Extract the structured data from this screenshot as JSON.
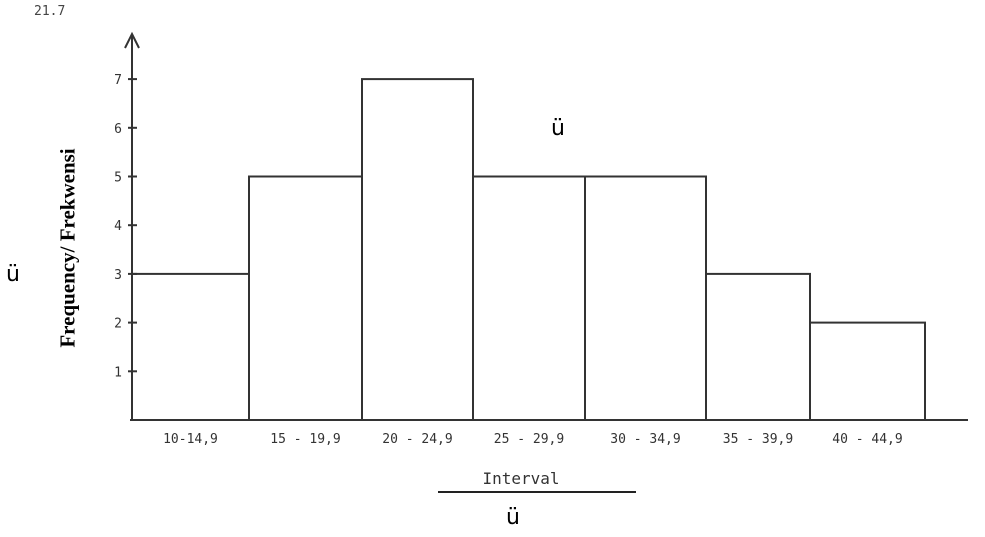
{
  "corner_note": "21.7",
  "marks": [
    "ü",
    "ü",
    "ü"
  ],
  "colors": {
    "ink": "#333333",
    "paper": "#ffffff"
  },
  "chart_data": {
    "type": "bar",
    "title": "",
    "xlabel": "Interval",
    "ylabel": "Frequency/ Frekwensi",
    "categories": [
      "10-14,9",
      "15 - 19,9",
      "20 - 24,9",
      "25 - 29,9",
      "30 - 34,9",
      "35 - 39,9",
      "40 - 44,9"
    ],
    "values": [
      3,
      5,
      7,
      5,
      5,
      3,
      2
    ],
    "yticks": [
      "1",
      "2",
      "3",
      "4",
      "5",
      "6",
      "7"
    ],
    "ylim": [
      0,
      8
    ],
    "grid": false
  }
}
